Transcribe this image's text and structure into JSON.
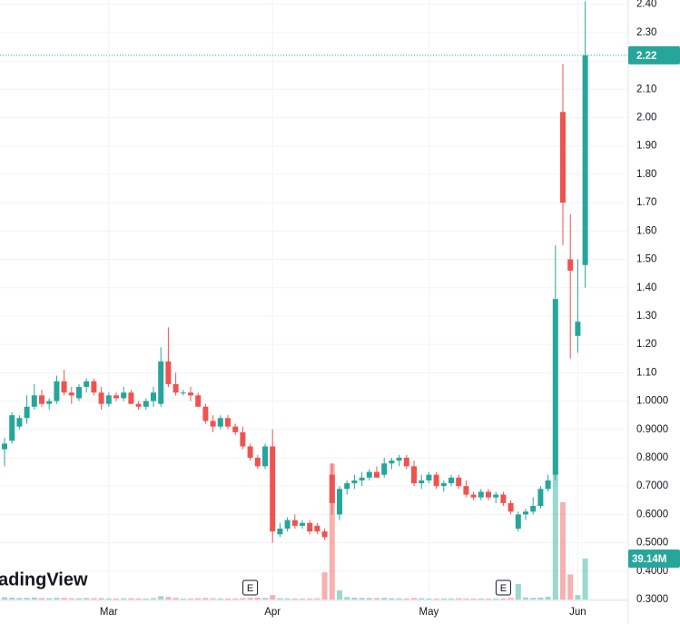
{
  "chart_data": {
    "type": "candlestick",
    "categories": [
      null,
      null,
      null,
      null,
      null,
      null,
      null,
      null,
      null,
      null,
      null,
      null,
      null,
      null,
      "Mar",
      null,
      null,
      null,
      null,
      null,
      null,
      null,
      null,
      null,
      null,
      null,
      null,
      null,
      null,
      null,
      null,
      null,
      null,
      null,
      null,
      null,
      "Apr",
      null,
      null,
      null,
      null,
      null,
      null,
      null,
      null,
      null,
      null,
      null,
      null,
      null,
      null,
      null,
      null,
      null,
      null,
      null,
      null,
      "May",
      null,
      null,
      null,
      null,
      null,
      null,
      null,
      null,
      null,
      null,
      null,
      null,
      null,
      null,
      null,
      null,
      null,
      null,
      null,
      "Jun",
      null
    ],
    "open": [
      0.83,
      0.86,
      0.91,
      0.94,
      0.98,
      1.02,
      0.99,
      1.0,
      1.07,
      1.03,
      1.01,
      1.05,
      1.07,
      1.03,
      0.99,
      1.02,
      1.01,
      1.03,
      0.99,
      0.98,
      1.0,
      0.99,
      1.14,
      1.06,
      1.03,
      1.03,
      1.02,
      0.98,
      0.93,
      0.91,
      0.94,
      0.91,
      0.89,
      0.84,
      0.8,
      0.77,
      0.84,
      0.53,
      0.55,
      0.58,
      0.56,
      0.57,
      0.56,
      0.54,
      0.74,
      0.6,
      0.69,
      0.71,
      0.72,
      0.73,
      0.75,
      0.74,
      0.78,
      0.79,
      0.8,
      0.77,
      0.71,
      0.72,
      0.74,
      0.7,
      0.71,
      0.73,
      0.7,
      0.67,
      0.66,
      0.68,
      0.66,
      0.67,
      0.64,
      0.55,
      0.6,
      0.61,
      0.63,
      0.69,
      0.74,
      2.02,
      1.5,
      1.23,
      1.48
    ],
    "high": [
      0.87,
      0.96,
      0.95,
      1.02,
      1.06,
      1.04,
      1.01,
      1.09,
      1.11,
      1.05,
      1.06,
      1.08,
      1.08,
      1.05,
      1.03,
      1.03,
      1.05,
      1.04,
      1.0,
      1.01,
      1.05,
      1.19,
      1.26,
      1.1,
      1.04,
      1.05,
      1.03,
      0.99,
      0.95,
      0.95,
      0.95,
      0.92,
      0.91,
      0.85,
      0.81,
      0.85,
      0.9,
      0.57,
      0.59,
      0.6,
      0.58,
      0.58,
      0.57,
      0.55,
      0.78,
      0.7,
      0.72,
      0.74,
      0.75,
      0.76,
      0.77,
      0.8,
      0.8,
      0.81,
      0.81,
      0.79,
      0.74,
      0.75,
      0.75,
      0.72,
      0.74,
      0.74,
      0.72,
      0.68,
      0.69,
      0.69,
      0.68,
      0.68,
      0.65,
      0.61,
      0.62,
      0.66,
      0.7,
      0.74,
      1.55,
      2.19,
      1.66,
      1.5,
      2.41
    ],
    "low": [
      0.77,
      0.85,
      0.9,
      0.92,
      0.97,
      0.98,
      0.97,
      0.99,
      1.02,
      0.99,
      1.0,
      1.03,
      1.02,
      0.97,
      0.98,
      1.0,
      1.0,
      0.99,
      0.97,
      0.97,
      0.98,
      0.98,
      1.05,
      1.02,
      1.02,
      1.0,
      0.98,
      0.92,
      0.89,
      0.9,
      0.9,
      0.88,
      0.83,
      0.79,
      0.76,
      0.76,
      0.5,
      0.52,
      0.54,
      0.55,
      0.55,
      0.53,
      0.53,
      0.51,
      0.6,
      0.58,
      0.67,
      0.69,
      0.7,
      0.72,
      0.73,
      0.73,
      0.76,
      0.77,
      0.76,
      0.7,
      0.69,
      0.71,
      0.69,
      0.68,
      0.7,
      0.69,
      0.66,
      0.65,
      0.65,
      0.65,
      0.64,
      0.63,
      0.6,
      0.54,
      0.58,
      0.6,
      0.62,
      0.68,
      0.72,
      1.55,
      1.15,
      1.17,
      1.4
    ],
    "close": [
      0.85,
      0.95,
      0.94,
      0.98,
      1.02,
      0.99,
      1.0,
      1.07,
      1.03,
      1.02,
      1.05,
      1.07,
      1.03,
      0.99,
      1.02,
      1.01,
      1.03,
      0.99,
      0.98,
      1.0,
      1.03,
      1.14,
      1.06,
      1.03,
      1.03,
      1.02,
      0.98,
      0.93,
      0.91,
      0.94,
      0.91,
      0.89,
      0.84,
      0.8,
      0.77,
      0.84,
      0.54,
      0.55,
      0.58,
      0.56,
      0.57,
      0.54,
      0.54,
      0.52,
      0.64,
      0.69,
      0.71,
      0.72,
      0.73,
      0.75,
      0.73,
      0.78,
      0.79,
      0.8,
      0.77,
      0.71,
      0.72,
      0.74,
      0.7,
      0.71,
      0.73,
      0.7,
      0.67,
      0.66,
      0.68,
      0.66,
      0.67,
      0.64,
      0.61,
      0.6,
      0.61,
      0.63,
      0.69,
      0.72,
      1.36,
      1.7,
      1.46,
      1.28,
      2.22
    ],
    "volume": {
      "values": [
        2.1,
        1.8,
        1.5,
        1.6,
        1.9,
        1.4,
        1.3,
        1.7,
        1.5,
        1.2,
        1.1,
        1.4,
        1.2,
        1.3,
        1.0,
        0.9,
        1.1,
        1.2,
        1.0,
        0.9,
        1.3,
        3.2,
        2.4,
        1.5,
        0.8,
        0.9,
        1.2,
        1.4,
        1.1,
        1.0,
        0.9,
        1.0,
        1.3,
        1.6,
        1.8,
        1.5,
        4.1,
        1.2,
        1.0,
        0.9,
        0.8,
        0.9,
        1.1,
        26,
        130,
        8.6,
        2.3,
        1.8,
        1.5,
        1.4,
        1.3,
        1.6,
        1.2,
        1.1,
        1.0,
        1.4,
        1.2,
        0.9,
        0.8,
        1.0,
        0.9,
        1.1,
        0.8,
        0.9,
        1.0,
        0.8,
        0.9,
        1.1,
        1.5,
        14.8,
        2.0,
        1.6,
        1.9,
        2.6,
        152,
        93,
        24,
        4.2,
        39.14
      ],
      "last_value_label": "39.14M"
    },
    "ylim": [
      0.3,
      2.415
    ],
    "yticks": [
      {
        "value": 0.3,
        "label": "0.3000"
      },
      {
        "value": 0.4,
        "label": "0.4000"
      },
      {
        "value": 0.5,
        "label": "0.5000"
      },
      {
        "value": 0.6,
        "label": "0.6000"
      },
      {
        "value": 0.7,
        "label": "0.7000"
      },
      {
        "value": 0.8,
        "label": "0.8000"
      },
      {
        "value": 0.9,
        "label": "0.9000"
      },
      {
        "value": 1.0,
        "label": "1.0000"
      },
      {
        "value": 1.1,
        "label": "1.10"
      },
      {
        "value": 1.2,
        "label": "1.20"
      },
      {
        "value": 1.3,
        "label": "1.30"
      },
      {
        "value": 1.4,
        "label": "1.40"
      },
      {
        "value": 1.5,
        "label": "1.50"
      },
      {
        "value": 1.6,
        "label": "1.60"
      },
      {
        "value": 1.7,
        "label": "1.70"
      },
      {
        "value": 1.8,
        "label": "1.80"
      },
      {
        "value": 1.9,
        "label": "1.90"
      },
      {
        "value": 2.0,
        "label": "2.00"
      },
      {
        "value": 2.1,
        "label": "2.10"
      },
      {
        "value": 2.2,
        "label": "2.20"
      },
      {
        "value": 2.3,
        "label": "2.30"
      },
      {
        "value": 2.4,
        "label": "2.40"
      }
    ],
    "grid": true,
    "up_color": "#26a69a",
    "down_color": "#ef5350",
    "earnings_markers": [
      "E",
      "E"
    ],
    "watermark": "adingView"
  }
}
